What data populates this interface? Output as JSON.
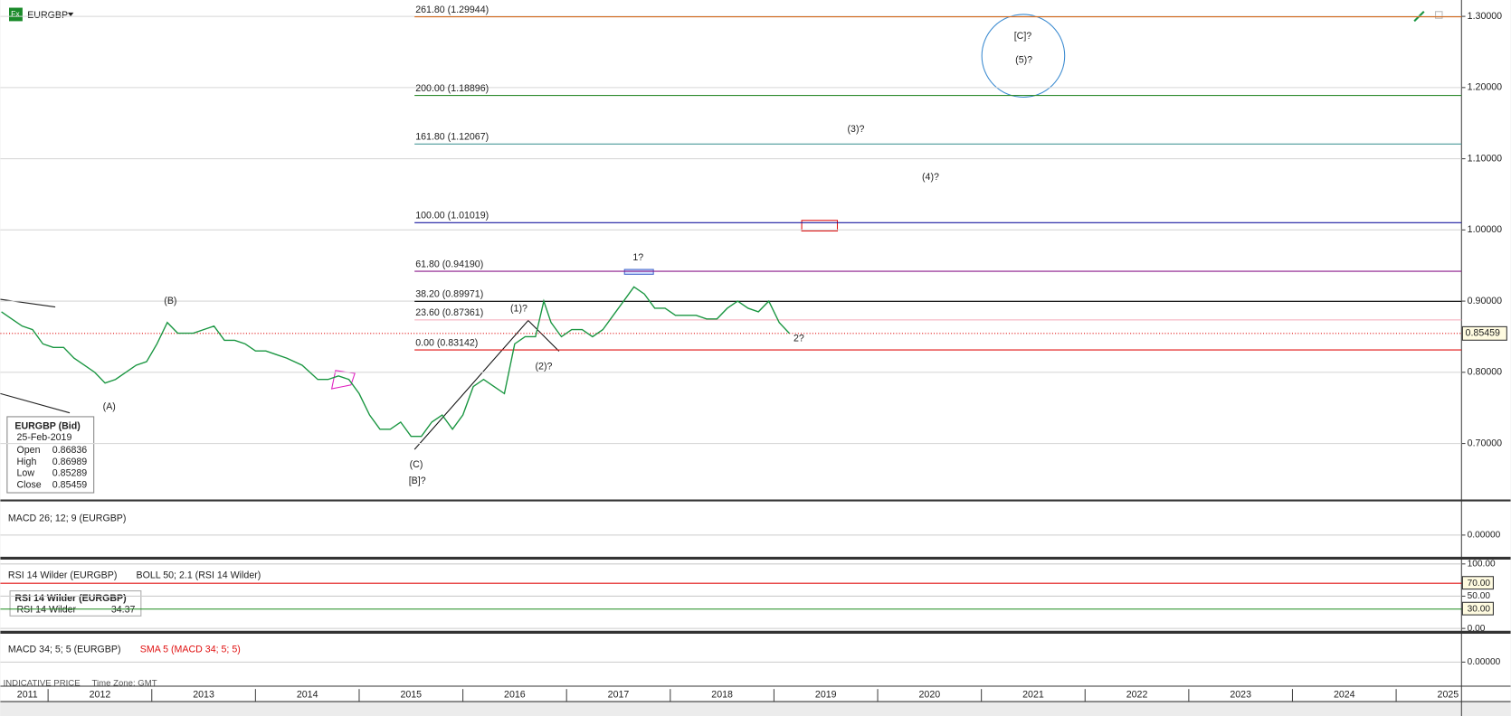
{
  "symbol": "EURGBP",
  "chart_data": {
    "type": "line",
    "color": "#1a9641",
    "x": [
      2011.55,
      2011.65,
      2011.75,
      2011.85,
      2011.95,
      2012.05,
      2012.15,
      2012.25,
      2012.35,
      2012.45,
      2012.55,
      2012.65,
      2012.75,
      2012.85,
      2012.95,
      2013.05,
      2013.15,
      2013.25,
      2013.4,
      2013.5,
      2013.6,
      2013.7,
      2013.8,
      2013.9,
      2014.0,
      2014.1,
      2014.2,
      2014.3,
      2014.45,
      2014.6,
      2014.7,
      2014.8,
      2014.9,
      2015.0,
      2015.1,
      2015.2,
      2015.3,
      2015.4,
      2015.5,
      2015.6,
      2015.7,
      2015.8,
      2015.9,
      2016.0,
      2016.1,
      2016.2,
      2016.3,
      2016.4,
      2016.5,
      2016.6,
      2016.7,
      2016.78,
      2016.85,
      2016.95,
      2017.05,
      2017.15,
      2017.25,
      2017.35,
      2017.45,
      2017.55,
      2017.65,
      2017.75,
      2017.85,
      2017.95,
      2018.05,
      2018.15,
      2018.25,
      2018.35,
      2018.45,
      2018.55,
      2018.65,
      2018.75,
      2018.85,
      2018.95,
      2019.05,
      2019.15
    ],
    "values": [
      0.885,
      0.875,
      0.865,
      0.86,
      0.84,
      0.835,
      0.835,
      0.82,
      0.81,
      0.8,
      0.785,
      0.79,
      0.8,
      0.81,
      0.815,
      0.84,
      0.87,
      0.855,
      0.855,
      0.86,
      0.865,
      0.845,
      0.845,
      0.84,
      0.83,
      0.83,
      0.825,
      0.82,
      0.81,
      0.79,
      0.79,
      0.795,
      0.79,
      0.77,
      0.74,
      0.72,
      0.72,
      0.73,
      0.71,
      0.71,
      0.73,
      0.74,
      0.72,
      0.74,
      0.78,
      0.79,
      0.78,
      0.77,
      0.84,
      0.85,
      0.85,
      0.9,
      0.87,
      0.85,
      0.86,
      0.86,
      0.85,
      0.86,
      0.88,
      0.9,
      0.92,
      0.91,
      0.89,
      0.89,
      0.88,
      0.88,
      0.88,
      0.875,
      0.875,
      0.89,
      0.9,
      0.89,
      0.885,
      0.9,
      0.87,
      0.85459
    ],
    "xlim": [
      2011.54,
      2025.63
    ],
    "ylim": [
      0.62,
      1.323
    ],
    "xticks": [
      2011,
      2012,
      2013,
      2014,
      2015,
      2016,
      2017,
      2018,
      2019,
      2020,
      2021,
      2022,
      2023,
      2024,
      2025
    ],
    "yticks": [
      {
        "value": 0.7,
        "label": "0.70000"
      },
      {
        "value": 0.8,
        "label": "0.80000"
      },
      {
        "value": 0.9,
        "label": "0.90000"
      },
      {
        "value": 1.0,
        "label": "1.00000"
      },
      {
        "value": 1.1,
        "label": "1.10000"
      },
      {
        "value": 1.2,
        "label": "1.20000"
      },
      {
        "value": 1.3,
        "label": "1.30000"
      }
    ],
    "grid": true,
    "last_price": {
      "value": 0.85459,
      "label": "0.85459"
    },
    "levels": [
      {
        "label": "261.80 (1.29944)",
        "value": 1.29944,
        "color": "#d2691e"
      },
      {
        "label": "200.00 (1.18896)",
        "value": 1.18896,
        "color": "#2e8b2e"
      },
      {
        "label": "161.80 (1.12067)",
        "value": 1.12067,
        "color": "#4a9a9a"
      },
      {
        "label": "100.00 (1.01019)",
        "value": 1.01019,
        "color": "#1a1aa0"
      },
      {
        "label": "61.80 (0.94190)",
        "value": 0.9419,
        "color": "#8b1a8b"
      },
      {
        "label": "38.20 (0.89971)",
        "value": 0.89971,
        "color": "#000000"
      },
      {
        "label": "23.60 (0.87361)",
        "value": 0.87361,
        "color": "#f4a8b8"
      },
      {
        "label": "0.00 (0.83142)",
        "value": 0.83142,
        "color": "#e01010"
      }
    ],
    "annotations": [
      {
        "label": "(A)",
        "x": 2012.59,
        "y": 0.751
      },
      {
        "label": "(B)",
        "x": 2013.18,
        "y": 0.9
      },
      {
        "label": "(C)",
        "x": 2015.55,
        "y": 0.67
      },
      {
        "label": "[B]?",
        "x": 2015.56,
        "y": 0.647
      },
      {
        "label": "(1)?",
        "x": 2016.54,
        "y": 0.889
      },
      {
        "label": "(2)?",
        "x": 2016.78,
        "y": 0.808
      },
      {
        "label": "1?",
        "x": 2017.69,
        "y": 0.961
      },
      {
        "label": "2?",
        "x": 2019.24,
        "y": 0.847
      },
      {
        "label": "(3)?",
        "x": 2019.79,
        "y": 1.141
      },
      {
        "label": "(4)?",
        "x": 2020.51,
        "y": 1.074
      },
      {
        "label": "[C]?",
        "x": 2021.4,
        "y": 1.272
      },
      {
        "label": "(5)?",
        "x": 2021.41,
        "y": 1.238
      }
    ]
  },
  "ohlc": {
    "title": "EURGBP (Bid)",
    "date": "25-Feb-2019",
    "rows": [
      [
        "Open",
        "0.86836"
      ],
      [
        "High",
        "0.86989"
      ],
      [
        "Low",
        "0.85289"
      ],
      [
        "Close",
        "0.85459"
      ]
    ]
  },
  "macd": {
    "label": "MACD 26; 12; 9 (EURGBP)",
    "ylim": [
      -0.0325,
      0.0325
    ],
    "yticks": [
      {
        "value": 0,
        "label": "0.00000"
      }
    ]
  },
  "rsi": {
    "label": "RSI 14 Wilder (EURGBP)",
    "boll": "BOLL 50; 2.1 (RSI 14 Wilder)",
    "ylim": [
      0,
      100
    ],
    "yticks": [
      {
        "value": 100,
        "label": "100.00"
      },
      {
        "value": 70,
        "label": "70.00"
      },
      {
        "value": 50,
        "label": "50.00"
      },
      {
        "value": 30,
        "label": "30.00"
      },
      {
        "value": 0,
        "label": "0.00"
      }
    ],
    "box_title": "RSI 14 Wilder (EURGBP)",
    "box_row": [
      "RSI 14 Wilder",
      "34.37"
    ]
  },
  "macd2": {
    "label": "MACD 34; 5; 5 (EURGBP)",
    "sma": "SMA 5 (MACD 34; 5; 5)",
    "ylim": [
      -0.027,
      0.027
    ],
    "yticks": [
      {
        "value": 0,
        "label": "0.00000"
      }
    ]
  },
  "footer": {
    "price": "INDICATIVE PRICE",
    "timezone": "Time Zone: GMT"
  }
}
